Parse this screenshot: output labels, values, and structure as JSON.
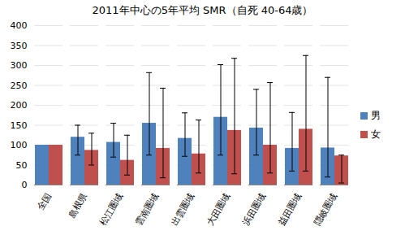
{
  "chart_data": {
    "type": "bar",
    "title": "2011年中心の5年平均 SMR（自死 40-64歳）",
    "categories": [
      "全国",
      "島根県",
      "松江圏域",
      "雲南圏域",
      "出雲圏域",
      "大田圏域",
      "浜田圏域",
      "益田圏域",
      "隠岐圏域"
    ],
    "series": [
      {
        "name": "男",
        "color": "#4f81bd",
        "values": [
          100,
          120,
          107,
          155,
          117,
          170,
          143,
          92,
          93
        ],
        "lower": [
          null,
          75,
          70,
          75,
          72,
          75,
          75,
          35,
          20
        ],
        "upper": [
          null,
          150,
          155,
          282,
          181,
          302,
          240,
          182,
          270
        ]
      },
      {
        "name": "女",
        "color": "#c0504d",
        "values": [
          100,
          87,
          62,
          92,
          78,
          137,
          100,
          140,
          73
        ],
        "lower": [
          null,
          50,
          25,
          18,
          30,
          28,
          30,
          35,
          5
        ],
        "upper": [
          null,
          130,
          125,
          243,
          163,
          318,
          257,
          325,
          75
        ]
      }
    ],
    "ylim": [
      0,
      400
    ],
    "yticks": [
      0,
      50,
      100,
      150,
      200,
      250,
      300,
      350,
      400
    ],
    "grid": true,
    "legend": "right"
  }
}
